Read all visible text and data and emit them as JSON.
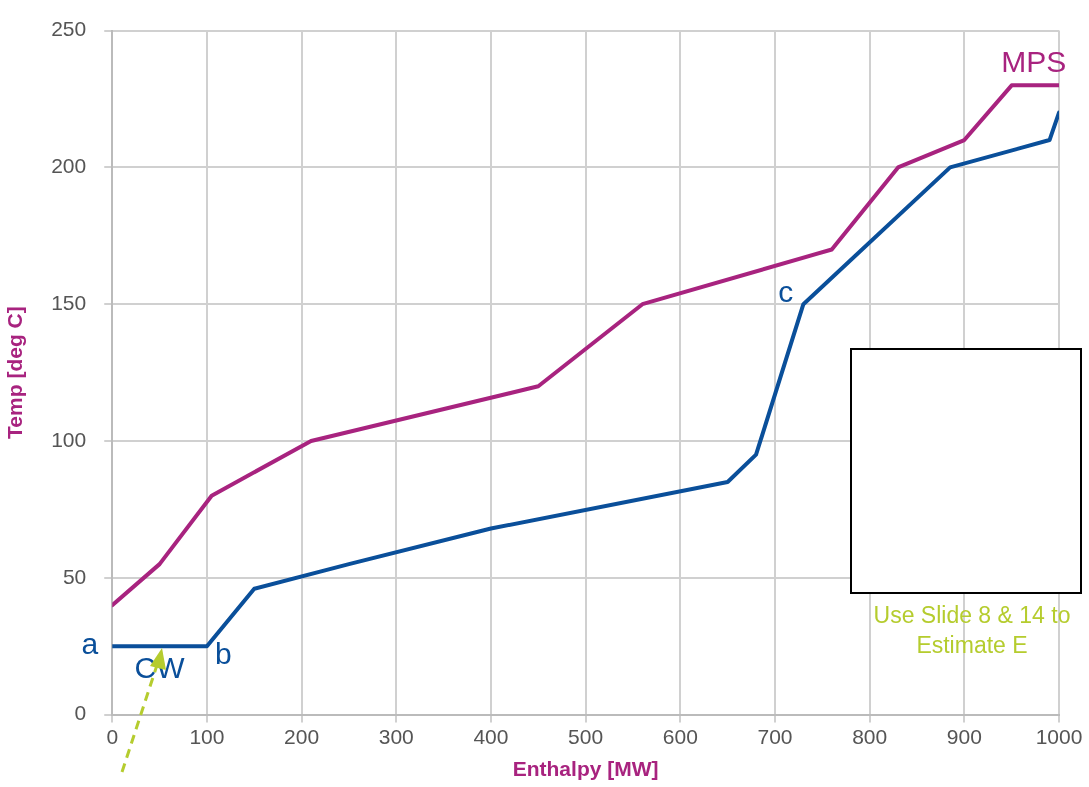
{
  "chart_data": {
    "type": "line",
    "xlabel": "Enthalpy [MW]",
    "ylabel": "Temp [deg C]",
    "xlim": [
      0,
      1000
    ],
    "xticks": [
      0,
      100,
      200,
      300,
      400,
      500,
      600,
      700,
      800,
      900,
      1000
    ],
    "ylim": [
      0,
      250
    ],
    "yticks": [
      0,
      50,
      100,
      150,
      200,
      250
    ],
    "grid": true,
    "marker": "none",
    "line_style": "solid",
    "series": [
      {
        "color": "#a8237f",
        "x": [
          0,
          50,
          105,
          210,
          450,
          560,
          760,
          830,
          900,
          950,
          1000
        ],
        "values": [
          40,
          55,
          80,
          100,
          120,
          150,
          170,
          200,
          210,
          230,
          230
        ]
      },
      {
        "color": "#0a4f9a",
        "x": [
          0,
          100,
          150,
          250,
          400,
          650,
          680,
          730,
          885,
          990,
          1000
        ],
        "values": [
          25,
          25,
          46,
          55,
          68,
          85,
          95,
          150,
          200,
          210,
          220
        ]
      }
    ],
    "annotations": [
      {
        "text": "MPS",
        "x": 950,
        "y": 230
      },
      {
        "text": "c",
        "x": 730,
        "y": 150
      },
      {
        "text": "a",
        "x": 0,
        "y": 25
      },
      {
        "text": "b",
        "x": 100,
        "y": 25
      },
      {
        "text": "CW",
        "x": 50,
        "y": 25
      },
      "Use Slide 8 & 14 to Estimate E"
    ]
  }
}
